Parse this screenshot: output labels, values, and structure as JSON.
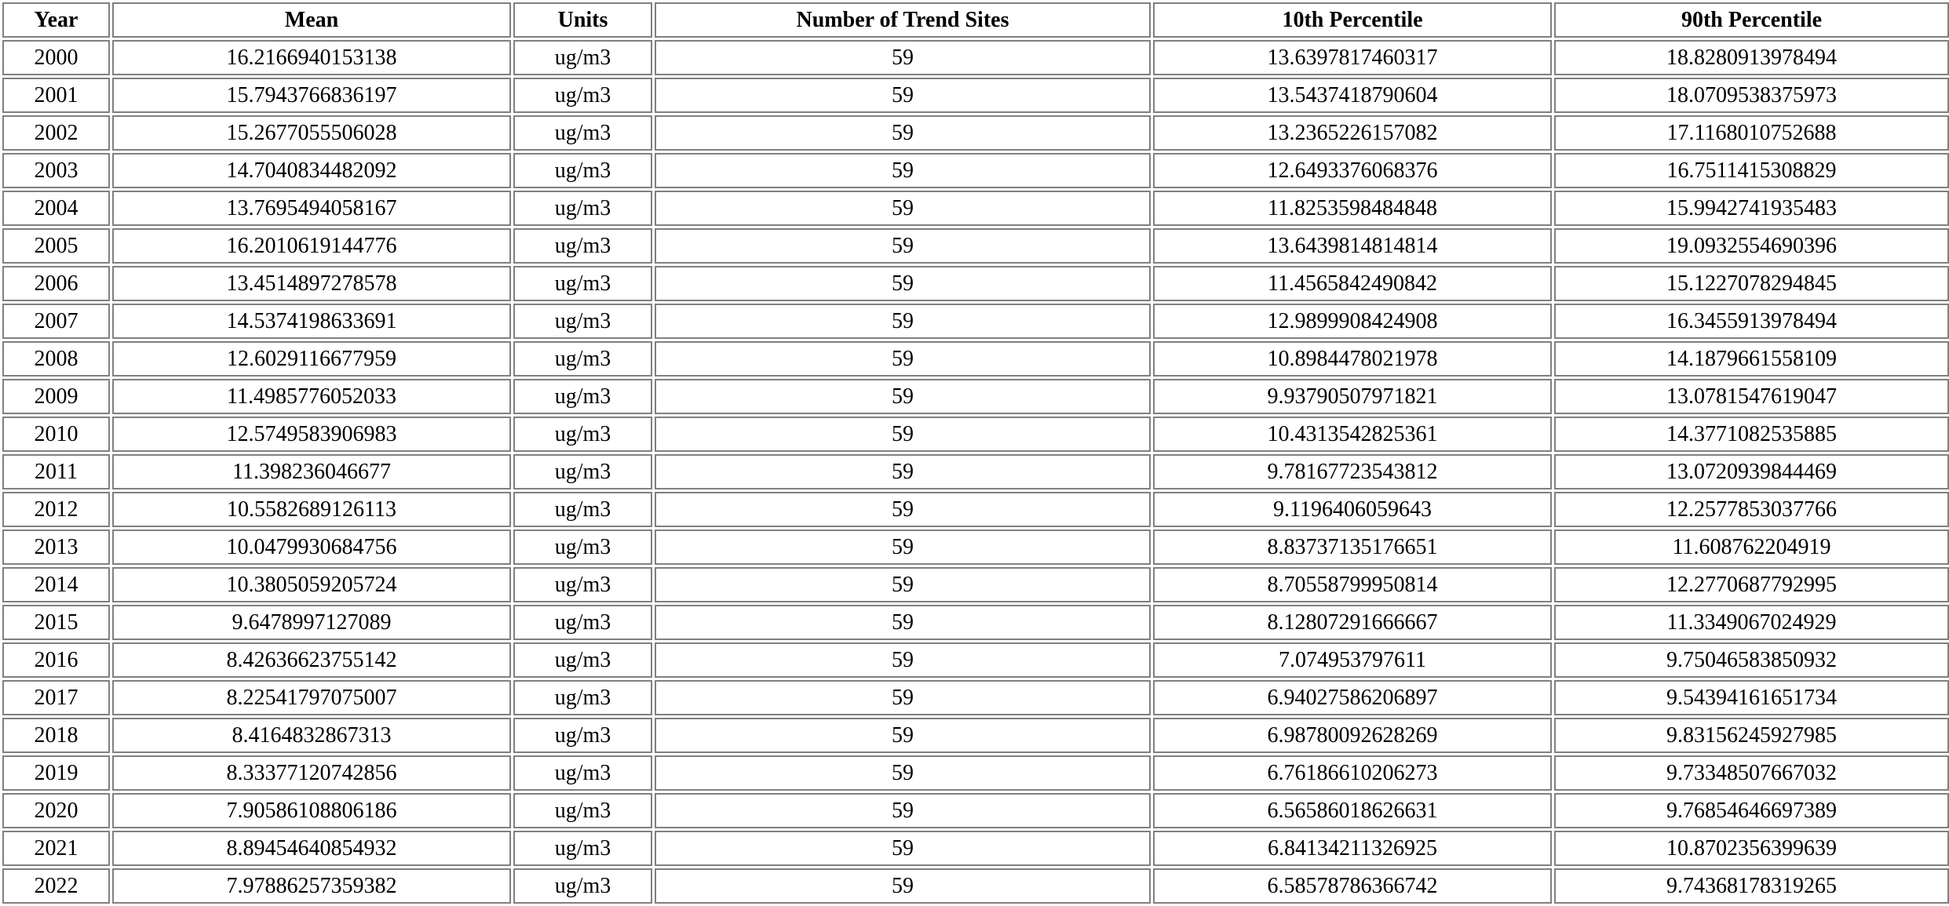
{
  "table": {
    "headers": {
      "year": "Year",
      "mean": "Mean",
      "units": "Units",
      "sites": "Number of Trend Sites",
      "p10": "10th Percentile",
      "p90": "90th Percentile"
    },
    "rows": [
      {
        "year": "2000",
        "mean": "16.2166940153138",
        "units": "ug/m3",
        "sites": "59",
        "p10": "13.6397817460317",
        "p90": "18.8280913978494"
      },
      {
        "year": "2001",
        "mean": "15.7943766836197",
        "units": "ug/m3",
        "sites": "59",
        "p10": "13.5437418790604",
        "p90": "18.0709538375973"
      },
      {
        "year": "2002",
        "mean": "15.2677055506028",
        "units": "ug/m3",
        "sites": "59",
        "p10": "13.2365226157082",
        "p90": "17.1168010752688"
      },
      {
        "year": "2003",
        "mean": "14.7040834482092",
        "units": "ug/m3",
        "sites": "59",
        "p10": "12.6493376068376",
        "p90": "16.7511415308829"
      },
      {
        "year": "2004",
        "mean": "13.7695494058167",
        "units": "ug/m3",
        "sites": "59",
        "p10": "11.8253598484848",
        "p90": "15.9942741935483"
      },
      {
        "year": "2005",
        "mean": "16.2010619144776",
        "units": "ug/m3",
        "sites": "59",
        "p10": "13.6439814814814",
        "p90": "19.0932554690396"
      },
      {
        "year": "2006",
        "mean": "13.4514897278578",
        "units": "ug/m3",
        "sites": "59",
        "p10": "11.4565842490842",
        "p90": "15.1227078294845"
      },
      {
        "year": "2007",
        "mean": "14.5374198633691",
        "units": "ug/m3",
        "sites": "59",
        "p10": "12.9899908424908",
        "p90": "16.3455913978494"
      },
      {
        "year": "2008",
        "mean": "12.6029116677959",
        "units": "ug/m3",
        "sites": "59",
        "p10": "10.8984478021978",
        "p90": "14.1879661558109"
      },
      {
        "year": "2009",
        "mean": "11.4985776052033",
        "units": "ug/m3",
        "sites": "59",
        "p10": "9.93790507971821",
        "p90": "13.0781547619047"
      },
      {
        "year": "2010",
        "mean": "12.5749583906983",
        "units": "ug/m3",
        "sites": "59",
        "p10": "10.4313542825361",
        "p90": "14.3771082535885"
      },
      {
        "year": "2011",
        "mean": "11.398236046677",
        "units": "ug/m3",
        "sites": "59",
        "p10": "9.78167723543812",
        "p90": "13.0720939844469"
      },
      {
        "year": "2012",
        "mean": "10.5582689126113",
        "units": "ug/m3",
        "sites": "59",
        "p10": "9.1196406059643",
        "p90": "12.2577853037766"
      },
      {
        "year": "2013",
        "mean": "10.0479930684756",
        "units": "ug/m3",
        "sites": "59",
        "p10": "8.83737135176651",
        "p90": "11.608762204919"
      },
      {
        "year": "2014",
        "mean": "10.3805059205724",
        "units": "ug/m3",
        "sites": "59",
        "p10": "8.70558799950814",
        "p90": "12.2770687792995"
      },
      {
        "year": "2015",
        "mean": "9.6478997127089",
        "units": "ug/m3",
        "sites": "59",
        "p10": "8.12807291666667",
        "p90": "11.3349067024929"
      },
      {
        "year": "2016",
        "mean": "8.42636623755142",
        "units": "ug/m3",
        "sites": "59",
        "p10": "7.074953797611",
        "p90": "9.75046583850932"
      },
      {
        "year": "2017",
        "mean": "8.22541797075007",
        "units": "ug/m3",
        "sites": "59",
        "p10": "6.94027586206897",
        "p90": "9.54394161651734"
      },
      {
        "year": "2018",
        "mean": "8.4164832867313",
        "units": "ug/m3",
        "sites": "59",
        "p10": "6.98780092628269",
        "p90": "9.83156245927985"
      },
      {
        "year": "2019",
        "mean": "8.33377120742856",
        "units": "ug/m3",
        "sites": "59",
        "p10": "6.76186610206273",
        "p90": "9.73348507667032"
      },
      {
        "year": "2020",
        "mean": "7.90586108806186",
        "units": "ug/m3",
        "sites": "59",
        "p10": "6.56586018626631",
        "p90": "9.76854646697389"
      },
      {
        "year": "2021",
        "mean": "8.89454640854932",
        "units": "ug/m3",
        "sites": "59",
        "p10": "6.84134211326925",
        "p90": "10.8702356399639"
      },
      {
        "year": "2022",
        "mean": "7.97886257359382",
        "units": "ug/m3",
        "sites": "59",
        "p10": "6.58578786366742",
        "p90": "9.74368178319265"
      }
    ]
  }
}
